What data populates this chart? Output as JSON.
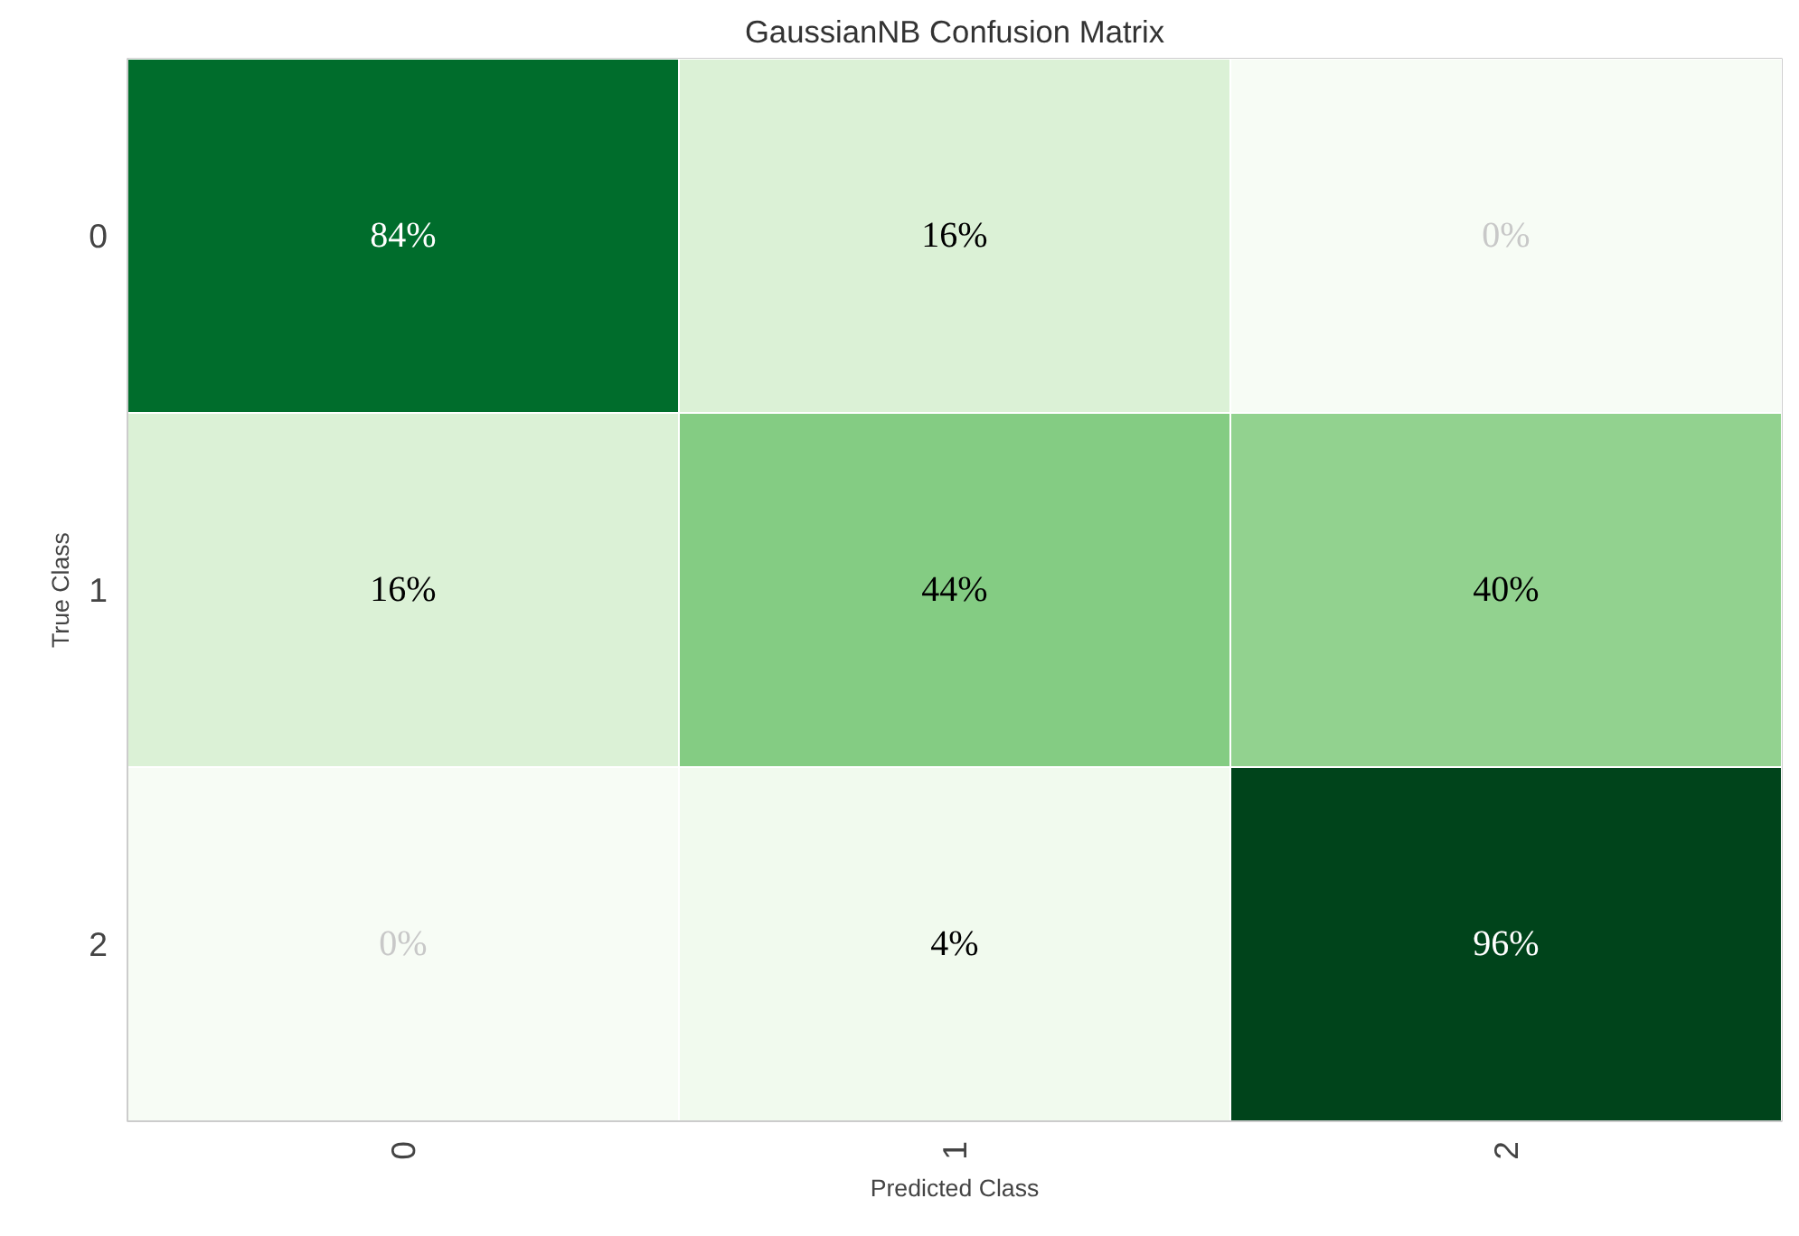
{
  "chart_data": {
    "type": "heatmap",
    "title": "GaussianNB Confusion Matrix",
    "xlabel": "Predicted Class",
    "ylabel": "True Class",
    "categories": [
      "0",
      "1",
      "2"
    ],
    "y_categories": [
      "0",
      "1",
      "2"
    ],
    "cells": [
      [
        84,
        16,
        0
      ],
      [
        16,
        44,
        40
      ],
      [
        0,
        4,
        96
      ]
    ],
    "cell_labels": [
      [
        "84%",
        "16%",
        "0%"
      ],
      [
        "16%",
        "44%",
        "40%"
      ],
      [
        "0%",
        "4%",
        "96%"
      ]
    ]
  }
}
